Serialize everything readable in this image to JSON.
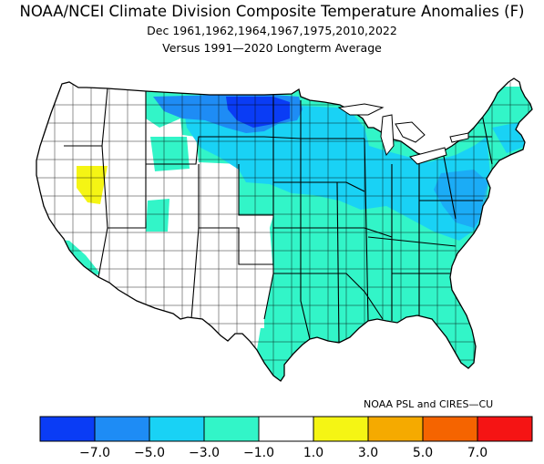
{
  "header": {
    "title": "NOAA/NCEI Climate Division Composite Temperature Anomalies (F)",
    "subtitle": "Dec   1961,1962,1964,1967,1975,2010,2022",
    "subtitle2": "Versus 1991—2020 Longterm Average"
  },
  "credit": "NOAA PSL and CIRES—CU",
  "colors": {
    "deep_blue": "#0a3cf5",
    "mid_blue": "#1e8cf5",
    "light_blue": "#19d2f5",
    "aqua": "#32f5c8",
    "white": "#ffffff",
    "yellow": "#f5f514",
    "orange": "#f5aa00",
    "dark_orange": "#f56400",
    "red": "#f51414"
  },
  "legend": {
    "bins": [
      "deep_blue",
      "mid_blue",
      "light_blue",
      "aqua",
      "white",
      "yellow",
      "orange",
      "dark_orange",
      "red"
    ],
    "labels": [
      "−7.0",
      "−5.0",
      "−3.0",
      "−1.0",
      "1.0",
      "3.0",
      "5.0",
      "7.0"
    ]
  }
}
